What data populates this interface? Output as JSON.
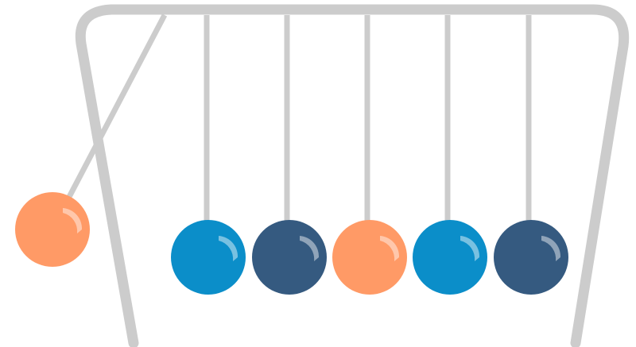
{
  "scene": {
    "subject": "newtons-cradle",
    "colors": {
      "frame": "#cccccc",
      "string": "#cccccc",
      "highlight": "#ffffff"
    },
    "balls": [
      {
        "name": "swinging-ball",
        "color": "#ff9a66",
        "state": "raised"
      },
      {
        "name": "ball-1",
        "color": "#0b8ec9",
        "state": "resting"
      },
      {
        "name": "ball-2",
        "color": "#355a80",
        "state": "resting"
      },
      {
        "name": "ball-3",
        "color": "#ff9a66",
        "state": "resting"
      },
      {
        "name": "ball-4",
        "color": "#0b8ec9",
        "state": "resting"
      },
      {
        "name": "ball-5",
        "color": "#355a80",
        "state": "resting"
      }
    ]
  }
}
